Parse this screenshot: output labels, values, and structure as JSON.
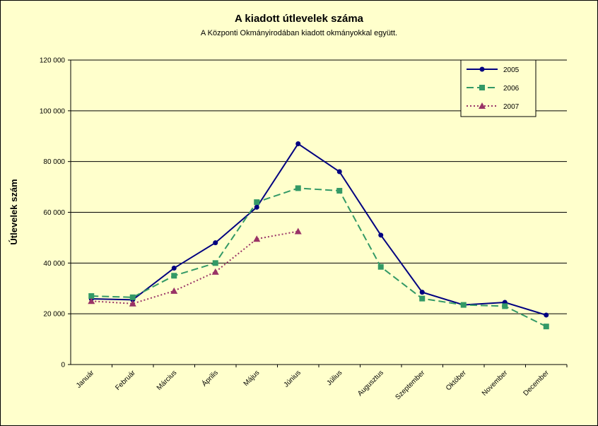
{
  "chart_data": {
    "type": "line",
    "title": "A  kiadott útlevelek száma",
    "subtitle": "A Központi Okmányirodában kiadott okmányokkal együtt.",
    "y_label": "Útlevelek szám",
    "categories": [
      "Január",
      "Február",
      "Március",
      "Április",
      "Május",
      "Június",
      "Július",
      "Augusztus",
      "Szeptember",
      "Október",
      "November",
      "December"
    ],
    "series": [
      {
        "name": "2005",
        "color": "#000080",
        "marker": "circle",
        "dash": "solid",
        "values": [
          25900,
          25500,
          38000,
          48000,
          62000,
          87000,
          76000,
          51000,
          28500,
          23500,
          24500,
          19500
        ]
      },
      {
        "name": "2006",
        "color": "#339966",
        "marker": "square",
        "dash": "dashed",
        "values": [
          27000,
          26500,
          35000,
          40000,
          64000,
          69500,
          68500,
          38500,
          26000,
          23500,
          23000,
          15000
        ]
      },
      {
        "name": "2007",
        "color": "#993366",
        "marker": "triangle",
        "dash": "dotted",
        "values": [
          25000,
          24000,
          29000,
          36500,
          49500,
          52500,
          null,
          null,
          null,
          null,
          null,
          null
        ]
      }
    ],
    "ylim": [
      0,
      120000
    ],
    "yticks": [
      0,
      {
        "value": 20000,
        "label": "20 000"
      },
      {
        "value": 40000,
        "label": "40 000"
      },
      {
        "value": 60000,
        "label": "60 000"
      },
      {
        "value": 80000,
        "label": "80 000"
      },
      {
        "value": 100000,
        "label": "100 000"
      },
      {
        "value": 120000,
        "label": "120 000"
      }
    ],
    "grid": true,
    "legend": "top-right"
  }
}
